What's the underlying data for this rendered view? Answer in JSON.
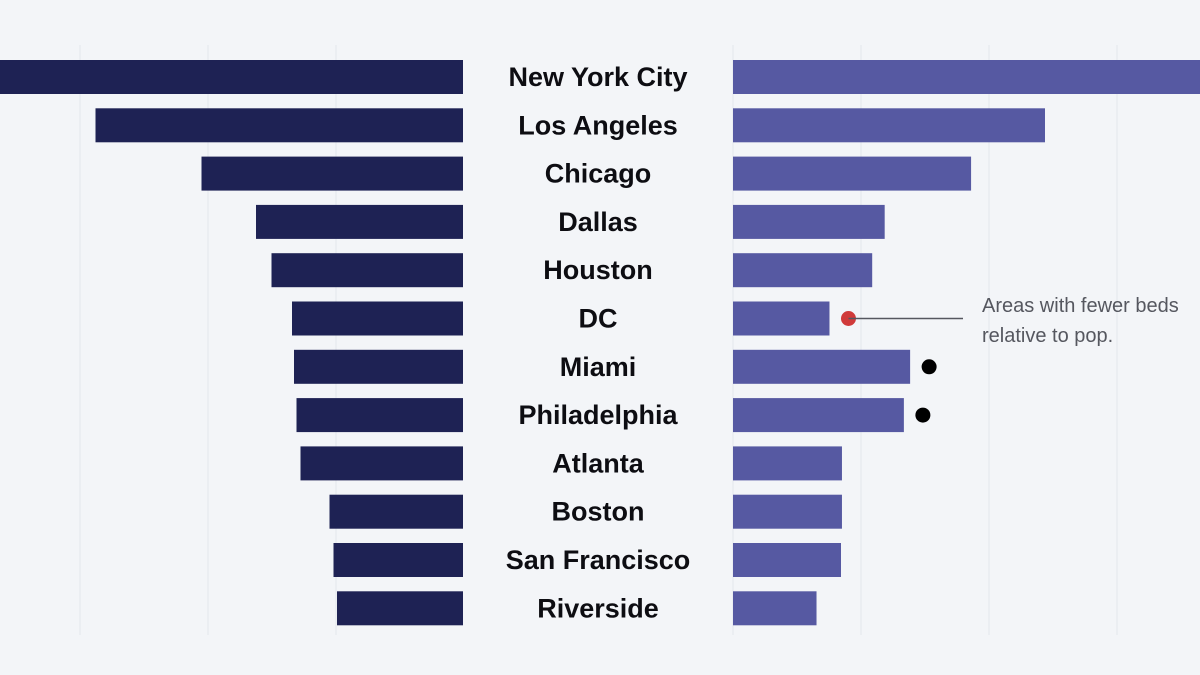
{
  "chart_data": {
    "type": "bar",
    "categories": [
      "New York City",
      "Los Angeles",
      "Chicago",
      "Dallas",
      "Houston",
      "DC",
      "Miami",
      "Philadelphia",
      "Atlanta",
      "Boston",
      "San Francisco",
      "Riverside"
    ],
    "series": [
      {
        "values": [
          100,
          73.5,
          52.3,
          41.4,
          38.3,
          34.2,
          33.8,
          33.3,
          32.5,
          26.7,
          25.9,
          25.2
        ]
      },
      {
        "values": [
          100,
          65.0,
          49.6,
          31.6,
          29.0,
          20.1,
          36.9,
          35.6,
          22.7,
          22.7,
          22.5,
          17.4
        ]
      }
    ],
    "left_color": "#1e2254",
    "right_color": "#5659a2",
    "markers": [
      {
        "category": "DC",
        "color": "#d03a3a"
      },
      {
        "category": "Miami",
        "color": "#000000"
      },
      {
        "category": "Philadelphia",
        "color": "#000000"
      }
    ],
    "annotation": {
      "lines": [
        "Areas with fewer beds",
        "relative to pop."
      ],
      "target": "DC"
    },
    "grid": true
  }
}
